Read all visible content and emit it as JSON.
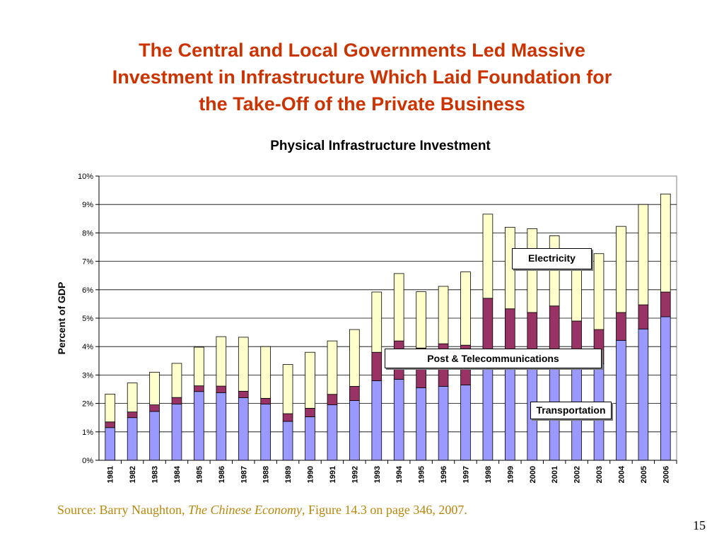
{
  "slide": {
    "title_lines": [
      "The Central and Local Governments Led Massive",
      "Investment in Infrastructure Which Laid Foundation for",
      "the Take-Off of the Private Business"
    ],
    "source_prefix": "Source: Barry Naughton, ",
    "source_book": "The Chinese Economy",
    "source_suffix": ", Figure 14.3 on page 346, 2007.",
    "page_number": "15"
  },
  "colors": {
    "title": "#cc3300",
    "source": "#b8860b",
    "transportation": "#9999ff",
    "post_telecom": "#993366",
    "electricity": "#ffffcc",
    "bar_outline": "#000000",
    "plot_background": "#ffffff"
  },
  "series_labels": {
    "electricity": "Electricity",
    "post_telecom": "Post & Telecommunications",
    "transportation": "Transportation"
  },
  "chart_data": {
    "type": "bar",
    "stacked": true,
    "title": "Physical Infrastructure Investment",
    "xlabel": "",
    "ylabel": "Percent of GDP",
    "ylim": [
      0,
      10
    ],
    "y_tick_values": [
      0,
      1,
      2,
      3,
      4,
      5,
      6,
      7,
      8,
      9,
      10
    ],
    "y_tick_labels": [
      "0%",
      "1%",
      "2%",
      "3%",
      "4%",
      "5%",
      "6%",
      "7%",
      "8%",
      "9%",
      "10%"
    ],
    "grid": "horizontal",
    "legend": "in-plot labels",
    "categories": [
      "1981",
      "1982",
      "1983",
      "1984",
      "1985",
      "1986",
      "1987",
      "1988",
      "1989",
      "1990",
      "1991",
      "1992",
      "1993",
      "1994",
      "1995",
      "1996",
      "1997",
      "1998",
      "1999",
      "2000",
      "2001",
      "2002",
      "2003",
      "2004",
      "2005",
      "2006"
    ],
    "series": [
      {
        "key": "transportation",
        "name": "Transportation",
        "values": [
          1.15,
          1.5,
          1.72,
          1.98,
          2.42,
          2.38,
          2.2,
          1.98,
          1.37,
          1.53,
          1.95,
          2.1,
          2.8,
          2.85,
          2.55,
          2.6,
          2.65,
          3.9,
          3.9,
          3.9,
          3.9,
          3.9,
          3.4,
          4.22,
          4.62,
          5.05
        ]
      },
      {
        "key": "post_telecom",
        "name": "Post & Telecommunications",
        "values": [
          0.2,
          0.2,
          0.23,
          0.23,
          0.2,
          0.23,
          0.23,
          0.2,
          0.27,
          0.3,
          0.37,
          0.5,
          1.0,
          1.35,
          1.4,
          1.5,
          1.4,
          1.8,
          1.43,
          1.3,
          1.53,
          1.0,
          1.2,
          0.98,
          0.85,
          0.87
        ]
      },
      {
        "key": "electricity",
        "name": "Electricity",
        "values": [
          0.98,
          1.02,
          1.15,
          1.2,
          1.36,
          1.74,
          1.9,
          1.82,
          1.73,
          1.97,
          1.88,
          2.0,
          2.12,
          2.37,
          1.98,
          2.02,
          2.58,
          2.96,
          2.87,
          2.95,
          2.47,
          2.0,
          2.67,
          3.03,
          3.53,
          3.45
        ]
      }
    ]
  }
}
